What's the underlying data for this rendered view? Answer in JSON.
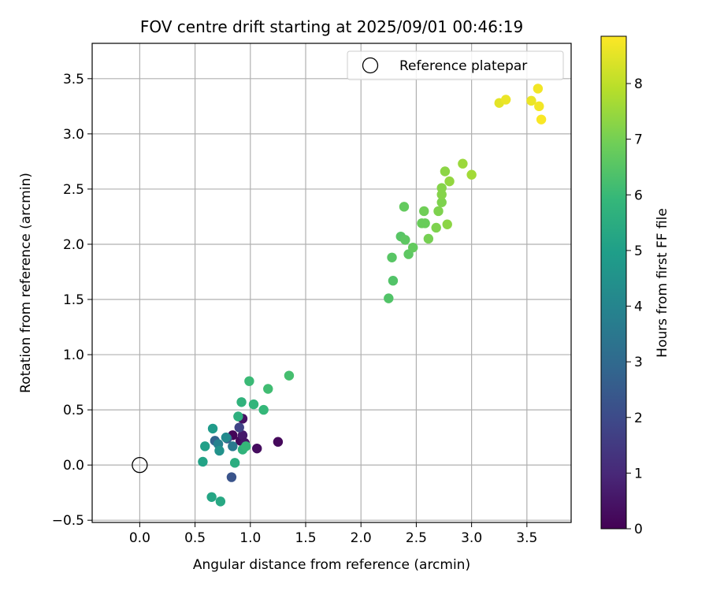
{
  "chart_data": {
    "type": "scatter",
    "title": "FOV centre drift starting at 2025/09/01 00:46:19",
    "xlabel": "Angular distance from reference (arcmin)",
    "ylabel": "Rotation from reference (arcmin)",
    "xlim": [
      -0.43,
      3.9
    ],
    "ylim": [
      -0.52,
      3.82
    ],
    "xticks": [
      0.0,
      0.5,
      1.0,
      1.5,
      2.0,
      2.5,
      3.0,
      3.5
    ],
    "xtick_labels": [
      "0.0",
      "0.5",
      "1.0",
      "1.5",
      "2.0",
      "2.5",
      "3.0",
      "3.5"
    ],
    "yticks": [
      -0.5,
      0.0,
      0.5,
      1.0,
      1.5,
      2.0,
      2.5,
      3.0,
      3.5
    ],
    "ytick_labels": [
      "−0.5",
      "0.0",
      "0.5",
      "1.0",
      "1.5",
      "2.0",
      "2.5",
      "3.0",
      "3.5"
    ],
    "grid": true,
    "legend": {
      "placement": "upper right",
      "entries": [
        "Reference platepar"
      ]
    },
    "reference_point": {
      "x": 0.0,
      "y": 0.0,
      "marker": "open-circle"
    },
    "colorbar": {
      "label": "Hours from first FF file",
      "colormap": "viridis",
      "range": [
        0,
        8.85
      ],
      "ticks": [
        0,
        1,
        2,
        3,
        4,
        5,
        6,
        7,
        8
      ],
      "tick_labels": [
        "0",
        "1",
        "2",
        "3",
        "4",
        "5",
        "6",
        "7",
        "8"
      ]
    },
    "points": [
      {
        "x": 0.84,
        "y": 0.27,
        "c": 0.1
      },
      {
        "x": 0.91,
        "y": 0.22,
        "c": 0.2
      },
      {
        "x": 0.93,
        "y": 0.42,
        "c": 0.4
      },
      {
        "x": 1.06,
        "y": 0.15,
        "c": 0.3
      },
      {
        "x": 1.25,
        "y": 0.21,
        "c": 0.2
      },
      {
        "x": 0.93,
        "y": 0.27,
        "c": 0.6
      },
      {
        "x": 0.95,
        "y": 0.2,
        "c": 0.5
      },
      {
        "x": 0.9,
        "y": 0.34,
        "c": 1.8
      },
      {
        "x": 0.83,
        "y": -0.11,
        "c": 2.3
      },
      {
        "x": 0.79,
        "y": 0.24,
        "c": 2.7
      },
      {
        "x": 0.68,
        "y": 0.22,
        "c": 2.8
      },
      {
        "x": 0.84,
        "y": 0.17,
        "c": 3.6
      },
      {
        "x": 0.71,
        "y": 0.19,
        "c": 3.9
      },
      {
        "x": 0.72,
        "y": 0.13,
        "c": 4.5
      },
      {
        "x": 0.78,
        "y": 0.25,
        "c": 4.2
      },
      {
        "x": 0.66,
        "y": 0.33,
        "c": 4.8
      },
      {
        "x": 0.59,
        "y": 0.17,
        "c": 5.0
      },
      {
        "x": 0.57,
        "y": 0.03,
        "c": 5.1
      },
      {
        "x": 0.65,
        "y": -0.29,
        "c": 5.2
      },
      {
        "x": 0.73,
        "y": -0.33,
        "c": 5.3
      },
      {
        "x": 0.86,
        "y": 0.02,
        "c": 5.5
      },
      {
        "x": 0.89,
        "y": 0.44,
        "c": 5.6
      },
      {
        "x": 0.93,
        "y": 0.14,
        "c": 5.7
      },
      {
        "x": 0.96,
        "y": 0.17,
        "c": 5.9
      },
      {
        "x": 0.92,
        "y": 0.57,
        "c": 5.7
      },
      {
        "x": 1.03,
        "y": 0.55,
        "c": 5.8
      },
      {
        "x": 1.12,
        "y": 0.5,
        "c": 5.9
      },
      {
        "x": 0.99,
        "y": 0.76,
        "c": 6.0
      },
      {
        "x": 1.16,
        "y": 0.69,
        "c": 6.1
      },
      {
        "x": 1.35,
        "y": 0.81,
        "c": 6.2
      },
      {
        "x": 2.25,
        "y": 1.51,
        "c": 6.4
      },
      {
        "x": 2.29,
        "y": 1.67,
        "c": 6.4
      },
      {
        "x": 2.28,
        "y": 1.88,
        "c": 6.5
      },
      {
        "x": 2.36,
        "y": 2.07,
        "c": 6.5
      },
      {
        "x": 2.4,
        "y": 2.04,
        "c": 6.6
      },
      {
        "x": 2.43,
        "y": 1.91,
        "c": 6.6
      },
      {
        "x": 2.47,
        "y": 1.97,
        "c": 6.7
      },
      {
        "x": 2.39,
        "y": 2.34,
        "c": 6.7
      },
      {
        "x": 2.55,
        "y": 2.19,
        "c": 6.8
      },
      {
        "x": 2.58,
        "y": 2.19,
        "c": 6.8
      },
      {
        "x": 2.57,
        "y": 2.3,
        "c": 6.9
      },
      {
        "x": 2.61,
        "y": 2.05,
        "c": 7.0
      },
      {
        "x": 2.68,
        "y": 2.15,
        "c": 7.1
      },
      {
        "x": 2.7,
        "y": 2.3,
        "c": 7.1
      },
      {
        "x": 2.73,
        "y": 2.38,
        "c": 7.1
      },
      {
        "x": 2.73,
        "y": 2.45,
        "c": 7.2
      },
      {
        "x": 2.73,
        "y": 2.51,
        "c": 7.2
      },
      {
        "x": 2.78,
        "y": 2.18,
        "c": 7.3
      },
      {
        "x": 2.76,
        "y": 2.66,
        "c": 7.3
      },
      {
        "x": 2.8,
        "y": 2.57,
        "c": 7.4
      },
      {
        "x": 2.92,
        "y": 2.73,
        "c": 7.5
      },
      {
        "x": 3.0,
        "y": 2.63,
        "c": 7.6
      },
      {
        "x": 3.25,
        "y": 3.28,
        "c": 8.5
      },
      {
        "x": 3.31,
        "y": 3.31,
        "c": 8.6
      },
      {
        "x": 3.54,
        "y": 3.3,
        "c": 8.6
      },
      {
        "x": 3.6,
        "y": 3.41,
        "c": 8.7
      },
      {
        "x": 3.61,
        "y": 3.25,
        "c": 8.7
      },
      {
        "x": 3.63,
        "y": 3.13,
        "c": 8.8
      }
    ]
  }
}
